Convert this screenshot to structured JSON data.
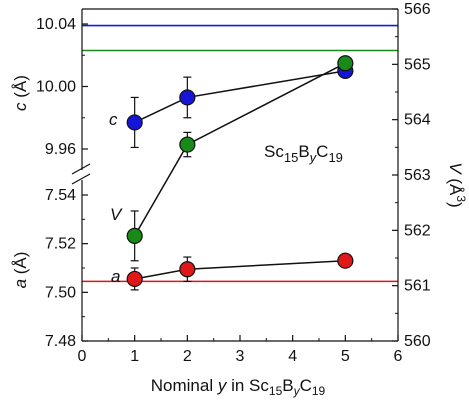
{
  "chart_data": {
    "type": "scatter",
    "annotation_main": "Sc",
    "annotation_sub1": "15",
    "annotation_mid": "B",
    "annotation_sub2": "y",
    "annotation_end": "C",
    "annotation_sub3": "19",
    "xlabel_main": "Nominal ",
    "xlabel_var": "y",
    "xlabel_mid": " in Sc",
    "xlabel_sub1": "15",
    "xlabel_b": "B",
    "xlabel_sub2": "y",
    "xlabel_c": "C",
    "xlabel_sub3": "19",
    "x_ticks": [
      "0",
      "1",
      "2",
      "3",
      "4",
      "5",
      "6"
    ],
    "xlim": [
      0,
      6
    ],
    "left_axis_upper": {
      "label_var": "c",
      "label_unit": " (Å)",
      "ylim": [
        9.94,
        10.045
      ],
      "ticks": [
        "10.04",
        "10.00",
        "9.96"
      ],
      "tick_values": [
        10.04,
        10.0,
        9.96
      ]
    },
    "left_axis_lower": {
      "label_var": "a",
      "label_unit": " (Å)",
      "ylim": [
        7.48,
        7.555
      ],
      "ticks": [
        "7.54",
        "7.52",
        "7.50",
        "7.48"
      ],
      "tick_values": [
        7.54,
        7.52,
        7.5,
        7.48
      ]
    },
    "right_axis": {
      "label_var": "V",
      "label_unit": " (Å",
      "label_sup": "3",
      "label_close": ")",
      "ylim": [
        560,
        566
      ],
      "ticks": [
        "566",
        "565",
        "564",
        "563",
        "562",
        "561",
        "560"
      ],
      "tick_values": [
        566,
        565,
        564,
        563,
        562,
        561,
        560
      ]
    },
    "series": [
      {
        "name": "c",
        "axis": "c",
        "color": "#1515d8",
        "x": [
          1,
          2,
          5
        ],
        "y": [
          9.977,
          9.993,
          10.01
        ],
        "err": [
          0.016,
          0.013,
          0
        ]
      },
      {
        "name": "V",
        "axis": "V",
        "color": "#178a17",
        "x": [
          1,
          2,
          5
        ],
        "y": [
          561.9,
          563.55,
          565.02
        ],
        "err": [
          0.45,
          0.22,
          0
        ]
      },
      {
        "name": "a",
        "axis": "a",
        "color": "#e01818",
        "x": [
          1,
          2,
          5
        ],
        "y": [
          7.5055,
          7.5095,
          7.513
        ],
        "err": [
          0.0045,
          0.005,
          0
        ]
      }
    ],
    "reference_lines": [
      {
        "axis": "c",
        "y": 10.039,
        "color": "#1a1ad8"
      },
      {
        "axis": "V",
        "y": 565.25,
        "color": "#178a17"
      },
      {
        "axis": "a",
        "y": 7.5045,
        "color": "#d81818"
      }
    ],
    "series_label_c": "c",
    "series_label_V": "V",
    "series_label_a": "a"
  }
}
